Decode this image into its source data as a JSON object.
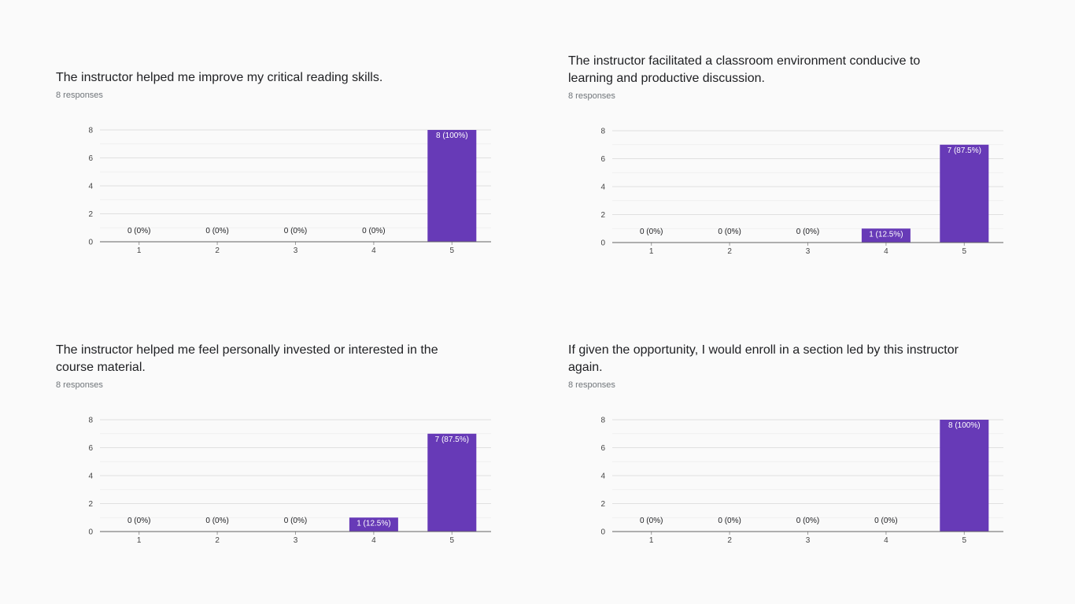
{
  "chart_data": [
    {
      "type": "bar",
      "title": "The instructor helped me improve my critical reading skills.",
      "subtitle": "8 responses",
      "categories": [
        "1",
        "2",
        "3",
        "4",
        "5"
      ],
      "values": [
        0,
        0,
        0,
        0,
        8
      ],
      "data_labels": [
        "0 (0%)",
        "0 (0%)",
        "0 (0%)",
        "0 (0%)",
        "8 (100%)"
      ],
      "ylim": [
        0,
        8
      ],
      "yticks": [
        0,
        2,
        4,
        6,
        8
      ],
      "grid": true,
      "bar_color": "#673ab7"
    },
    {
      "type": "bar",
      "title": "The instructor facilitated a classroom environment conducive to learning and productive discussion.",
      "subtitle": "8 responses",
      "categories": [
        "1",
        "2",
        "3",
        "4",
        "5"
      ],
      "values": [
        0,
        0,
        0,
        1,
        7
      ],
      "data_labels": [
        "0 (0%)",
        "0 (0%)",
        "0 (0%)",
        "1 (12.5%)",
        "7 (87.5%)"
      ],
      "ylim": [
        0,
        8
      ],
      "yticks": [
        0,
        2,
        4,
        6,
        8
      ],
      "grid": true,
      "bar_color": "#673ab7"
    },
    {
      "type": "bar",
      "title": "The instructor helped me feel personally invested or interested in the course material.",
      "subtitle": "8 responses",
      "categories": [
        "1",
        "2",
        "3",
        "4",
        "5"
      ],
      "values": [
        0,
        0,
        0,
        1,
        7
      ],
      "data_labels": [
        "0 (0%)",
        "0 (0%)",
        "0 (0%)",
        "1 (12.5%)",
        "7 (87.5%)"
      ],
      "ylim": [
        0,
        8
      ],
      "yticks": [
        0,
        2,
        4,
        6,
        8
      ],
      "grid": true,
      "bar_color": "#673ab7"
    },
    {
      "type": "bar",
      "title": "If given the opportunity, I would enroll in a section led by this instructor again.",
      "subtitle": "8 responses",
      "categories": [
        "1",
        "2",
        "3",
        "4",
        "5"
      ],
      "values": [
        0,
        0,
        0,
        0,
        8
      ],
      "data_labels": [
        "0 (0%)",
        "0 (0%)",
        "0 (0%)",
        "0 (0%)",
        "8 (100%)"
      ],
      "ylim": [
        0,
        8
      ],
      "yticks": [
        0,
        2,
        4,
        6,
        8
      ],
      "grid": true,
      "bar_color": "#673ab7"
    }
  ]
}
